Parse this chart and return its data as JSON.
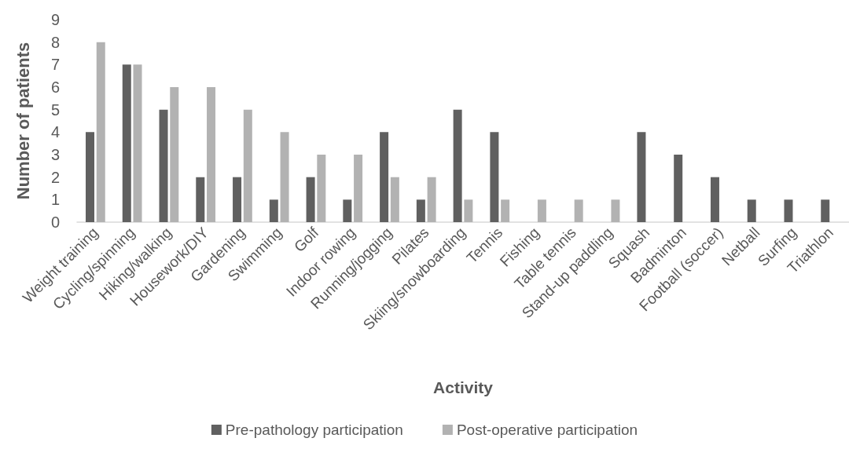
{
  "chart_data": {
    "type": "bar",
    "xlabel": "Activity",
    "ylabel": "Number of patients",
    "categories": [
      "Weight training",
      "Cycling/spinning",
      "Hiking/walking",
      "Housework/DIY",
      "Gardening",
      "Swimming",
      "Golf",
      "Indoor rowing",
      "Running/jogging",
      "Pilates",
      "Skiing/snowboarding",
      "Tennis",
      "Fishing",
      "Table tennis",
      "Stand-up paddling",
      "Squash",
      "Badminton",
      "Football (soccer)",
      "Netball",
      "Surfing",
      "Triathlon"
    ],
    "series": [
      {
        "name": "Pre-pathology participation",
        "color": "#606060",
        "values": [
          4,
          7,
          5,
          2,
          2,
          1,
          2,
          1,
          4,
          1,
          5,
          4,
          0,
          0,
          0,
          4,
          3,
          2,
          1,
          1,
          1
        ]
      },
      {
        "name": "Post-operative participation",
        "color": "#b2b2b2",
        "values": [
          8,
          7,
          6,
          6,
          5,
          4,
          3,
          3,
          2,
          2,
          1,
          1,
          1,
          1,
          1,
          0,
          0,
          0,
          0,
          0,
          0
        ]
      }
    ],
    "ylim": [
      0,
      9
    ],
    "yticks": [
      0,
      1,
      2,
      3,
      4,
      5,
      6,
      7,
      8,
      9
    ],
    "grid": false,
    "legend": "bottom"
  }
}
